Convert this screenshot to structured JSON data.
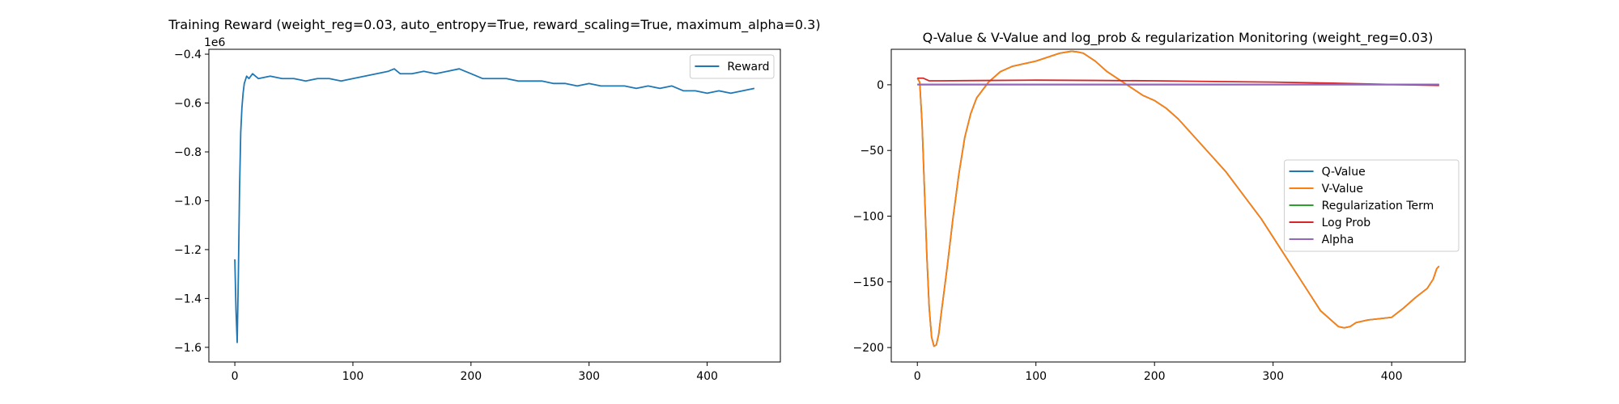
{
  "chart_data": [
    {
      "type": "line",
      "title": "Training Reward (weight_reg=0.03, auto_entropy=True, reward_scaling=True, maximum_alpha=0.3)",
      "xlabel": "",
      "ylabel": "",
      "y_offset_label": "1e6",
      "xlim": [
        -22,
        462
      ],
      "ylim": [
        -1.66,
        -0.38
      ],
      "x_ticks": [
        0,
        100,
        200,
        300,
        400
      ],
      "y_ticks": [
        -1.6,
        -1.4,
        -1.2,
        -1.0,
        -0.8,
        -0.6,
        -0.4
      ],
      "y_tick_labels": [
        "−1.6",
        "−1.4",
        "−1.2",
        "−1.0",
        "−0.8",
        "−0.6",
        "−0.4"
      ],
      "grid": false,
      "legend_position": "top-right",
      "colors": {
        "Reward": "#1f77b4"
      },
      "series": [
        {
          "name": "Reward",
          "x": [
            0,
            1,
            2,
            3,
            4,
            5,
            6,
            7,
            8,
            10,
            12,
            15,
            20,
            30,
            40,
            50,
            60,
            70,
            80,
            90,
            100,
            110,
            120,
            130,
            135,
            140,
            150,
            160,
            170,
            180,
            190,
            195,
            200,
            210,
            220,
            230,
            240,
            250,
            260,
            270,
            280,
            290,
            300,
            310,
            320,
            330,
            340,
            350,
            360,
            370,
            380,
            390,
            400,
            410,
            420,
            430,
            440
          ],
          "values": [
            -1.24,
            -1.45,
            -1.58,
            -1.3,
            -0.95,
            -0.72,
            -0.62,
            -0.56,
            -0.52,
            -0.49,
            -0.5,
            -0.48,
            -0.5,
            -0.49,
            -0.5,
            -0.5,
            -0.51,
            -0.5,
            -0.5,
            -0.51,
            -0.5,
            -0.49,
            -0.48,
            -0.47,
            -0.46,
            -0.48,
            -0.48,
            -0.47,
            -0.48,
            -0.47,
            -0.46,
            -0.47,
            -0.48,
            -0.5,
            -0.5,
            -0.5,
            -0.51,
            -0.51,
            -0.51,
            -0.52,
            -0.52,
            -0.53,
            -0.52,
            -0.53,
            -0.53,
            -0.53,
            -0.54,
            -0.53,
            -0.54,
            -0.53,
            -0.55,
            -0.55,
            -0.56,
            -0.55,
            -0.56,
            -0.55,
            -0.54
          ]
        }
      ]
    },
    {
      "type": "line",
      "title": "Q-Value & V-Value and log_prob & regularization Monitoring (weight_reg=0.03)",
      "xlabel": "",
      "ylabel": "",
      "xlim": [
        -22,
        462
      ],
      "ylim": [
        -211,
        27
      ],
      "x_ticks": [
        0,
        100,
        200,
        300,
        400
      ],
      "y_ticks": [
        -200,
        -150,
        -100,
        -50,
        0
      ],
      "y_tick_labels": [
        "−200",
        "−150",
        "−100",
        "−50",
        "0"
      ],
      "grid": false,
      "legend_position": "center-right",
      "series": [
        {
          "name": "Q-Value",
          "color": "#1f77b4",
          "x": [
            0,
            2,
            4,
            6,
            8,
            10,
            12,
            14,
            16,
            18,
            20,
            25,
            30,
            35,
            40,
            45,
            50,
            55,
            60,
            65,
            70,
            75,
            80,
            90,
            100,
            110,
            120,
            130,
            135,
            140,
            150,
            160,
            170,
            180,
            190,
            200,
            210,
            220,
            230,
            240,
            250,
            260,
            270,
            280,
            290,
            300,
            310,
            320,
            330,
            340,
            350,
            355,
            360,
            365,
            370,
            380,
            390,
            400,
            410,
            420,
            430,
            435,
            438,
            440
          ],
          "values": [
            5,
            2,
            -30,
            -80,
            -130,
            -170,
            -192,
            -199,
            -198,
            -190,
            -175,
            -140,
            -102,
            -68,
            -40,
            -22,
            -10,
            -4,
            2,
            6,
            10,
            12,
            14,
            16,
            18,
            21,
            24,
            25.5,
            25,
            24,
            18,
            10,
            4,
            -2,
            -8,
            -12,
            -18,
            -26,
            -36,
            -46,
            -56,
            -66,
            -78,
            -90,
            -102,
            -116,
            -130,
            -144,
            -158,
            -172,
            -180,
            -184,
            -185,
            -184,
            -181,
            -179,
            -178,
            -177,
            -170,
            -162,
            -155,
            -148,
            -140,
            -138
          ]
        },
        {
          "name": "V-Value",
          "color": "#ff7f0e",
          "x": [
            0,
            2,
            4,
            6,
            8,
            10,
            12,
            14,
            16,
            18,
            20,
            25,
            30,
            35,
            40,
            45,
            50,
            55,
            60,
            65,
            70,
            75,
            80,
            90,
            100,
            110,
            120,
            130,
            135,
            140,
            150,
            160,
            170,
            180,
            190,
            200,
            210,
            220,
            230,
            240,
            250,
            260,
            270,
            280,
            290,
            300,
            310,
            320,
            330,
            340,
            350,
            355,
            360,
            365,
            370,
            380,
            390,
            400,
            410,
            420,
            430,
            435,
            438,
            440
          ],
          "values": [
            5,
            2,
            -30,
            -80,
            -130,
            -170,
            -192,
            -199,
            -198,
            -190,
            -175,
            -140,
            -102,
            -68,
            -40,
            -22,
            -10,
            -4,
            2,
            6,
            10,
            12,
            14,
            16,
            18,
            21,
            24,
            25.5,
            25,
            24,
            18,
            10,
            4,
            -2,
            -8,
            -12,
            -18,
            -26,
            -36,
            -46,
            -56,
            -66,
            -78,
            -90,
            -102,
            -116,
            -130,
            -144,
            -158,
            -172,
            -180,
            -184,
            -185,
            -184,
            -181,
            -179,
            -178,
            -177,
            -170,
            -162,
            -155,
            -148,
            -140,
            -138
          ]
        },
        {
          "name": "Regularization Term",
          "color": "#2ca02c",
          "x": [
            0,
            100,
            200,
            300,
            400,
            440
          ],
          "values": [
            0,
            0,
            0,
            0,
            0,
            0
          ]
        },
        {
          "name": "Log Prob",
          "color": "#d62728",
          "x": [
            0,
            5,
            10,
            20,
            50,
            100,
            150,
            200,
            250,
            300,
            350,
            400,
            440
          ],
          "values": [
            5,
            5,
            3,
            3,
            3.2,
            3.5,
            3.3,
            3,
            2.5,
            2,
            1.2,
            0.2,
            -0.5
          ]
        },
        {
          "name": "Alpha",
          "color": "#9467bd",
          "x": [
            0,
            100,
            200,
            300,
            400,
            440
          ],
          "values": [
            0.3,
            0.3,
            0.3,
            0.3,
            0.3,
            0.3
          ]
        }
      ]
    }
  ]
}
